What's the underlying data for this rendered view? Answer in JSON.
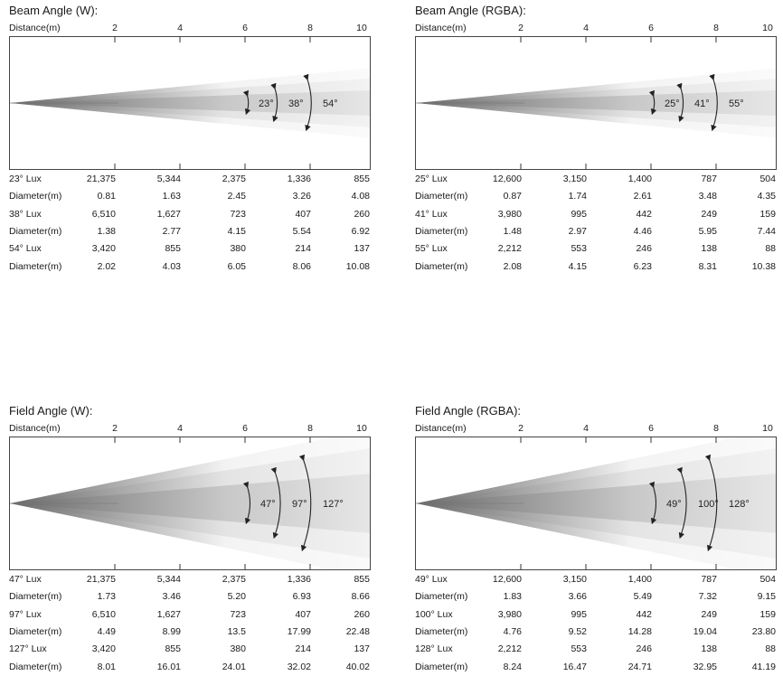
{
  "distance_label": "Distance(m)",
  "ticks": [
    "2",
    "4",
    "6",
    "8",
    "10"
  ],
  "panels": [
    {
      "title": "Beam Angle (W):",
      "angles": [
        "23°",
        "38°",
        "54°"
      ],
      "rows": [
        {
          "label": "23° Lux",
          "values": [
            "21,375",
            "5,344",
            "2,375",
            "1,336",
            "855"
          ]
        },
        {
          "label": "Diameter(m)",
          "values": [
            "0.81",
            "1.63",
            "2.45",
            "3.26",
            "4.08"
          ]
        },
        {
          "label": "38° Lux",
          "values": [
            "6,510",
            "1,627",
            "723",
            "407",
            "260"
          ]
        },
        {
          "label": "Diameter(m)",
          "values": [
            "1.38",
            "2.77",
            "4.15",
            "5.54",
            "6.92"
          ]
        },
        {
          "label": "54° Lux",
          "values": [
            "3,420",
            "855",
            "380",
            "214",
            "137"
          ]
        },
        {
          "label": "Diameter(m)",
          "values": [
            "2.02",
            "4.03",
            "6.05",
            "8.06",
            "10.08"
          ]
        }
      ]
    },
    {
      "title": "Beam Angle (RGBA):",
      "angles": [
        "25°",
        "41°",
        "55°"
      ],
      "rows": [
        {
          "label": "25° Lux",
          "values": [
            "12,600",
            "3,150",
            "1,400",
            "787",
            "504"
          ]
        },
        {
          "label": "Diameter(m)",
          "values": [
            "0.87",
            "1.74",
            "2.61",
            "3.48",
            "4.35"
          ]
        },
        {
          "label": "41° Lux",
          "values": [
            "3,980",
            "995",
            "442",
            "249",
            "159"
          ]
        },
        {
          "label": "Diameter(m)",
          "values": [
            "1.48",
            "2.97",
            "4.46",
            "5.95",
            "7.44"
          ]
        },
        {
          "label": "55° Lux",
          "values": [
            "2,212",
            "553",
            "246",
            "138",
            "88"
          ]
        },
        {
          "label": "Diameter(m)",
          "values": [
            "2.08",
            "4.15",
            "6.23",
            "8.31",
            "10.38"
          ]
        }
      ]
    },
    {
      "title": "Field Angle (W):",
      "angles": [
        "47°",
        "97°",
        "127°"
      ],
      "rows": [
        {
          "label": "47° Lux",
          "values": [
            "21,375",
            "5,344",
            "2,375",
            "1,336",
            "855"
          ]
        },
        {
          "label": "Diameter(m)",
          "values": [
            "1.73",
            "3.46",
            "5.20",
            "6.93",
            "8.66"
          ]
        },
        {
          "label": "97° Lux",
          "values": [
            "6,510",
            "1,627",
            "723",
            "407",
            "260"
          ]
        },
        {
          "label": "Diameter(m)",
          "values": [
            "4.49",
            "8.99",
            "13.5",
            "17.99",
            "22.48"
          ]
        },
        {
          "label": "127° Lux",
          "values": [
            "3,420",
            "855",
            "380",
            "214",
            "137"
          ]
        },
        {
          "label": "Diameter(m)",
          "values": [
            "8.01",
            "16.01",
            "24.01",
            "32.02",
            "40.02"
          ]
        }
      ]
    },
    {
      "title": "Field Angle (RGBA):",
      "angles": [
        "49°",
        "100°",
        "128°"
      ],
      "rows": [
        {
          "label": "49° Lux",
          "values": [
            "12,600",
            "3,150",
            "1,400",
            "787",
            "504"
          ]
        },
        {
          "label": "Diameter(m)",
          "values": [
            "1.83",
            "3.66",
            "5.49",
            "7.32",
            "9.15"
          ]
        },
        {
          "label": "100° Lux",
          "values": [
            "3,980",
            "995",
            "442",
            "249",
            "159"
          ]
        },
        {
          "label": "Diameter(m)",
          "values": [
            "4.76",
            "9.52",
            "14.28",
            "19.04",
            "23.80"
          ]
        },
        {
          "label": "128° Lux",
          "values": [
            "2,212",
            "553",
            "246",
            "138",
            "88"
          ]
        },
        {
          "label": "Diameter(m)",
          "values": [
            "8.24",
            "16.47",
            "24.71",
            "32.95",
            "41.19"
          ]
        }
      ]
    }
  ]
}
